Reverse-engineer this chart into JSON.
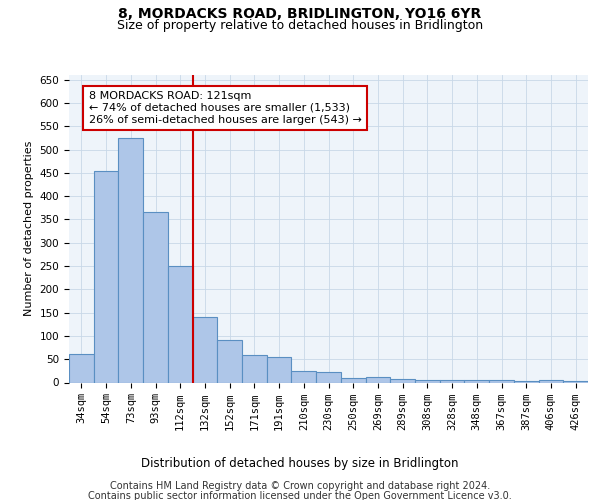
{
  "title": "8, MORDACKS ROAD, BRIDLINGTON, YO16 6YR",
  "subtitle": "Size of property relative to detached houses in Bridlington",
  "xlabel": "Distribution of detached houses by size in Bridlington",
  "ylabel": "Number of detached properties",
  "categories": [
    "34sqm",
    "54sqm",
    "73sqm",
    "93sqm",
    "112sqm",
    "132sqm",
    "152sqm",
    "171sqm",
    "191sqm",
    "210sqm",
    "230sqm",
    "250sqm",
    "269sqm",
    "289sqm",
    "308sqm",
    "328sqm",
    "348sqm",
    "367sqm",
    "387sqm",
    "406sqm",
    "426sqm"
  ],
  "values": [
    62,
    455,
    525,
    365,
    250,
    140,
    92,
    58,
    55,
    25,
    22,
    10,
    12,
    8,
    6,
    6,
    5,
    5,
    3,
    5,
    3
  ],
  "bar_color": "#aec6e8",
  "bar_edge_color": "#5a8fc2",
  "bar_edge_width": 0.8,
  "red_line_index": 4.5,
  "red_line_color": "#cc0000",
  "annotation_text": "8 MORDACKS ROAD: 121sqm\n← 74% of detached houses are smaller (1,533)\n26% of semi-detached houses are larger (543) →",
  "annotation_box_color": "#ffffff",
  "annotation_box_edge": "#cc0000",
  "ylim": [
    0,
    660
  ],
  "yticks": [
    0,
    50,
    100,
    150,
    200,
    250,
    300,
    350,
    400,
    450,
    500,
    550,
    600,
    650
  ],
  "grid_color": "#c8d8e8",
  "bg_color": "#eef4fa",
  "footer_line1": "Contains HM Land Registry data © Crown copyright and database right 2024.",
  "footer_line2": "Contains public sector information licensed under the Open Government Licence v3.0.",
  "title_fontsize": 10,
  "subtitle_fontsize": 9,
  "xlabel_fontsize": 8.5,
  "ylabel_fontsize": 8,
  "tick_fontsize": 7.5,
  "annotation_fontsize": 8,
  "footer_fontsize": 7
}
